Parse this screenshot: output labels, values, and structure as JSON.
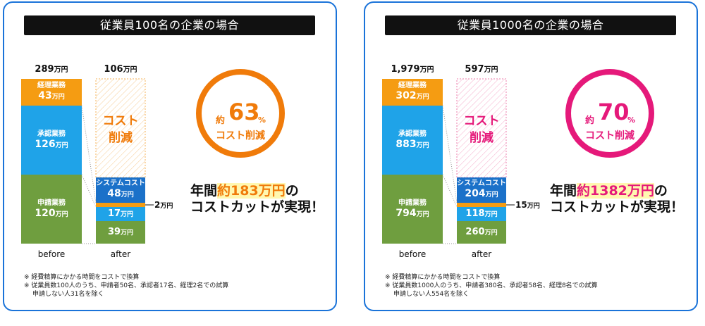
{
  "colors": {
    "keiri": "#f59c12",
    "shonin": "#1fa3e8",
    "shinsei": "#6f9e3f",
    "system": "#1b71c9",
    "panel_border": "#1a73d9",
    "left_accent": "#f07b0a",
    "right_accent": "#e5197a"
  },
  "panels": [
    {
      "title": "従業員100名の企業の場合",
      "before_total_num": "289",
      "before_total_unit": "万円",
      "after_total_num": "106",
      "after_total_unit": "万円",
      "reduction_label_1": "コスト",
      "reduction_label_2": "削減",
      "before_label": "before",
      "after_label": "after",
      "before_segments": [
        {
          "name": "経理業務",
          "num": "43",
          "unit": "万円"
        },
        {
          "name": "承認業務",
          "num": "126",
          "unit": "万円"
        },
        {
          "name": "申請業務",
          "num": "120",
          "unit": "万円"
        }
      ],
      "after_system": {
        "name": "システムコスト",
        "num": "48",
        "unit": "万円"
      },
      "after_keiri": {
        "num": "2",
        "unit": "万円"
      },
      "after_shonin": {
        "num": "17",
        "unit": "万円"
      },
      "after_shinsei": {
        "num": "39",
        "unit": "万円"
      },
      "circle": {
        "approx": "約",
        "pct": "63",
        "pct_sym": "%",
        "sub": "コスト削減"
      },
      "headline_1a": "年間",
      "headline_1b": "約183万円",
      "headline_1c": "の",
      "headline_2": "コストカットが実現！",
      "notes": [
        "※ 経費精算にかかる時間をコストで換算",
        "※ 従業員数100人のうち、申請者50名、承認者17名、経理2名での試算",
        "申請しない人31名を除く"
      ]
    },
    {
      "title": "従業員1000名の企業の場合",
      "before_total_num": "1,979",
      "before_total_unit": "万円",
      "after_total_num": "597",
      "after_total_unit": "万円",
      "reduction_label_1": "コスト",
      "reduction_label_2": "削減",
      "before_label": "before",
      "after_label": "after",
      "before_segments": [
        {
          "name": "経理業務",
          "num": "302",
          "unit": "万円"
        },
        {
          "name": "承認業務",
          "num": "883",
          "unit": "万円"
        },
        {
          "name": "申請業務",
          "num": "794",
          "unit": "万円"
        }
      ],
      "after_system": {
        "name": "システムコスト",
        "num": "204",
        "unit": "万円"
      },
      "after_keiri": {
        "num": "15",
        "unit": "万円"
      },
      "after_shonin": {
        "num": "118",
        "unit": "万円"
      },
      "after_shinsei": {
        "num": "260",
        "unit": "万円"
      },
      "circle": {
        "approx": "約",
        "pct": "70",
        "pct_sym": "%",
        "sub": "コスト削減"
      },
      "headline_1a": "年間",
      "headline_1b": "約1382万円",
      "headline_1c": "の",
      "headline_2": "コストカットが実現！",
      "notes": [
        "※ 経費精算にかかる時間をコストで換算",
        "※ 従業員数1000人のうち、申請者380名、承認者58名、経理8名での試算",
        "申請しない人554名を除く"
      ]
    }
  ],
  "chart_data": [
    {
      "type": "bar",
      "title": "従業員100名の企業の場合",
      "categories": [
        "before",
        "after"
      ],
      "series": [
        {
          "name": "経理業務",
          "values": [
            43,
            2
          ]
        },
        {
          "name": "承認業務",
          "values": [
            126,
            17
          ]
        },
        {
          "name": "申請業務",
          "values": [
            120,
            39
          ]
        },
        {
          "name": "システムコスト",
          "values": [
            0,
            48
          ]
        }
      ],
      "totals": [
        289,
        106
      ],
      "reduction_percent": 63,
      "annual_saving": 183
    },
    {
      "type": "bar",
      "title": "従業員1000名の企業の場合",
      "categories": [
        "before",
        "after"
      ],
      "series": [
        {
          "name": "経理業務",
          "values": [
            302,
            15
          ]
        },
        {
          "name": "承認業務",
          "values": [
            883,
            118
          ]
        },
        {
          "name": "申請業務",
          "values": [
            794,
            260
          ]
        },
        {
          "name": "システムコスト",
          "values": [
            0,
            204
          ]
        }
      ],
      "totals": [
        1979,
        597
      ],
      "reduction_percent": 70,
      "annual_saving": 1382
    }
  ]
}
